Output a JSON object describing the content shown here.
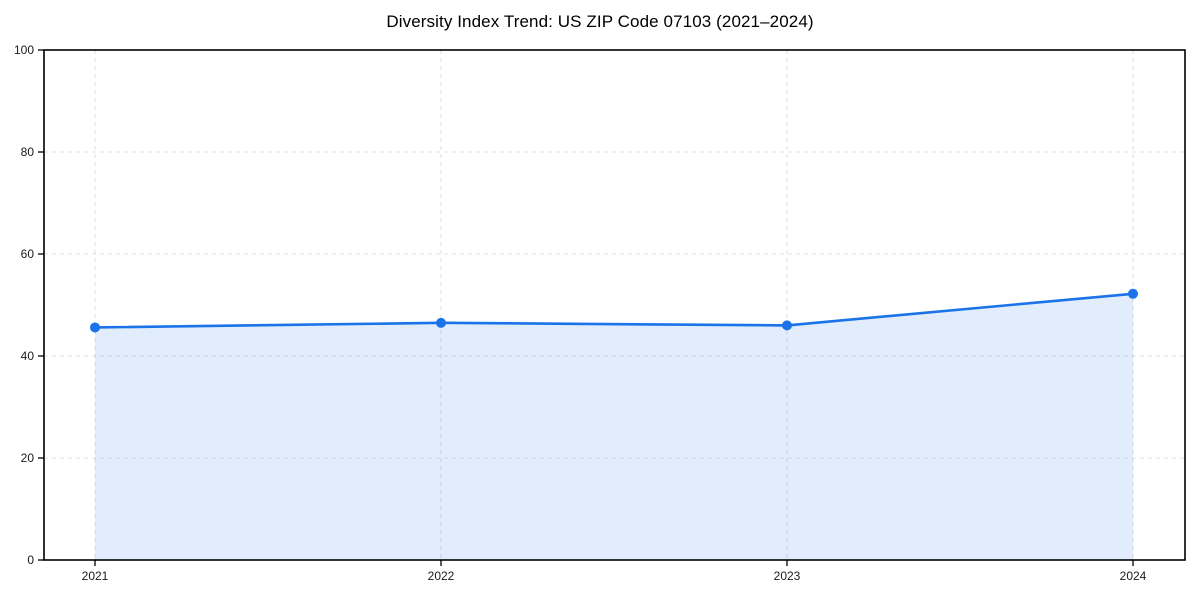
{
  "chart_data": {
    "type": "area",
    "title": "Diversity Index Trend: US ZIP Code 07103 (2021–2024)",
    "categories": [
      "2021",
      "2022",
      "2023",
      "2024"
    ],
    "series": [
      {
        "name": "Diversity Index",
        "values": [
          45.6,
          46.5,
          46.0,
          52.2
        ]
      }
    ],
    "xlabel": "",
    "ylabel": "",
    "ylim": [
      0,
      100
    ],
    "y_ticks": [
      0,
      20,
      40,
      60,
      80,
      100
    ],
    "grid": "dashed-both-axes",
    "legend": "none",
    "marker": "circle",
    "colors": {
      "line": "#1a73e8",
      "marker": "#1a73e8",
      "area_fill": "rgba(26,115,232,0.13)",
      "gridline": "#e1e1e1",
      "spine": "#000000",
      "tick_label": "#1a1a1a"
    }
  }
}
